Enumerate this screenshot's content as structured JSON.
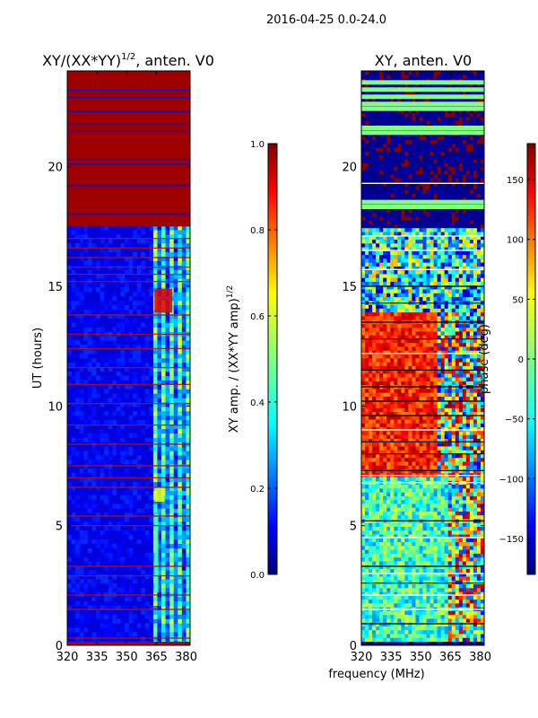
{
  "figure": {
    "suptitle": "2016-04-25 0.0-24.0",
    "shared_xlabel": "frequency (MHz)"
  },
  "chart_data": [
    {
      "type": "heatmap",
      "title": "XY/(XX*YY)",
      "title_exponent": "1/2",
      "title_suffix": ", anten. V0",
      "xlabel": "",
      "ylabel": "UT (hours)",
      "xlim": [
        320,
        382
      ],
      "ylim": [
        0,
        24
      ],
      "xticks": [
        320,
        335,
        350,
        365,
        380
      ],
      "yticks": [
        0,
        5,
        10,
        15,
        20
      ],
      "colorbar": {
        "label": "XY amp. / (XX*YY amp)",
        "label_exponent": "1/2",
        "range": [
          0.0,
          1.0
        ],
        "ticks": [
          "0.0",
          "0.2",
          "0.4",
          "0.6",
          "0.8",
          "1.0"
        ],
        "tick_values": [
          0.0,
          0.2,
          0.4,
          0.6,
          0.8,
          1.0
        ]
      },
      "bands": [
        {
          "y0": 0.0,
          "y1": 0.15,
          "value": 0.95
        },
        {
          "y0": 17.5,
          "y1": 24.0,
          "value": 0.97
        }
      ],
      "hot_patches": [
        {
          "x0": 364,
          "x1": 373,
          "y0": 13.9,
          "y1": 14.9,
          "value": 0.9
        },
        {
          "x0": 364,
          "x1": 369,
          "y0": 6.0,
          "y1": 6.6,
          "value": 0.6
        },
        {
          "x0": 364,
          "x1": 366,
          "y0": 2.2,
          "y1": 5.5,
          "value": 0.45
        }
      ],
      "horizontal_lines_red": [
        0.3,
        1.5,
        2.1,
        2.9,
        3.3,
        5.0,
        5.4,
        6.6,
        7.0,
        7.5,
        8.4,
        9.2,
        10.1,
        10.9,
        11.6,
        12.4,
        13.0,
        13.8,
        15.2,
        15.5,
        15.8,
        16.2,
        16.6,
        17.0
      ],
      "horizontal_lines_blue": [
        18.0,
        19.2,
        20.1,
        20.3,
        21.5,
        21.8,
        22.3,
        22.9,
        23.2
      ]
    },
    {
      "type": "heatmap",
      "title": "XY, anten. V0",
      "xlabel": "frequency (MHz)",
      "ylabel": "",
      "xlim": [
        320,
        382
      ],
      "ylim": [
        0,
        24
      ],
      "xticks": [
        320,
        335,
        350,
        365,
        380
      ],
      "yticks": [
        0,
        5,
        10,
        15,
        20
      ],
      "colorbar": {
        "label": "phase (deg)",
        "range": [
          -180,
          180
        ],
        "ticks": [
          "150",
          "100",
          "50",
          "0",
          "−50",
          "−100",
          "−150"
        ],
        "tick_values": [
          150,
          100,
          50,
          0,
          -50,
          -100,
          -150
        ]
      },
      "regions": [
        {
          "x0": 320,
          "x1": 382,
          "y0": 0.0,
          "y1": 0.2,
          "value": -175
        },
        {
          "x0": 320,
          "x1": 363,
          "y0": 0.2,
          "y1": 7.0,
          "value": -25,
          "noise": 60
        },
        {
          "x0": 363,
          "x1": 382,
          "y0": 0.2,
          "y1": 7.0,
          "value": 20,
          "noise": 150
        },
        {
          "x0": 320,
          "x1": 358,
          "y0": 7.0,
          "y1": 14.0,
          "value": 125,
          "noise": 40
        },
        {
          "x0": 358,
          "x1": 382,
          "y0": 7.0,
          "y1": 14.0,
          "value": 20,
          "noise": 160
        },
        {
          "x0": 320,
          "x1": 382,
          "y0": 14.0,
          "y1": 17.5,
          "value": -40,
          "noise": 120
        },
        {
          "x0": 320,
          "x1": 382,
          "y0": 17.5,
          "y1": 24.0,
          "value": -175,
          "noise": 8
        }
      ],
      "stripes_green_top": [
        18.3,
        18.5,
        21.4,
        21.6,
        22.4,
        22.6,
        22.9,
        23.2,
        23.5
      ],
      "horizontal_lines_white": [
        1.5,
        2.1,
        3.0,
        4.5,
        6.8,
        7.1,
        9.0,
        12.2,
        15.7,
        16.5,
        17.1,
        19.3
      ],
      "horizontal_lines_black": [
        0.9,
        2.6,
        3.3,
        5.2,
        7.3,
        8.0,
        8.5,
        9.6,
        10.2,
        10.8,
        11.5,
        12.8,
        13.5,
        14.3,
        15.0
      ]
    }
  ]
}
